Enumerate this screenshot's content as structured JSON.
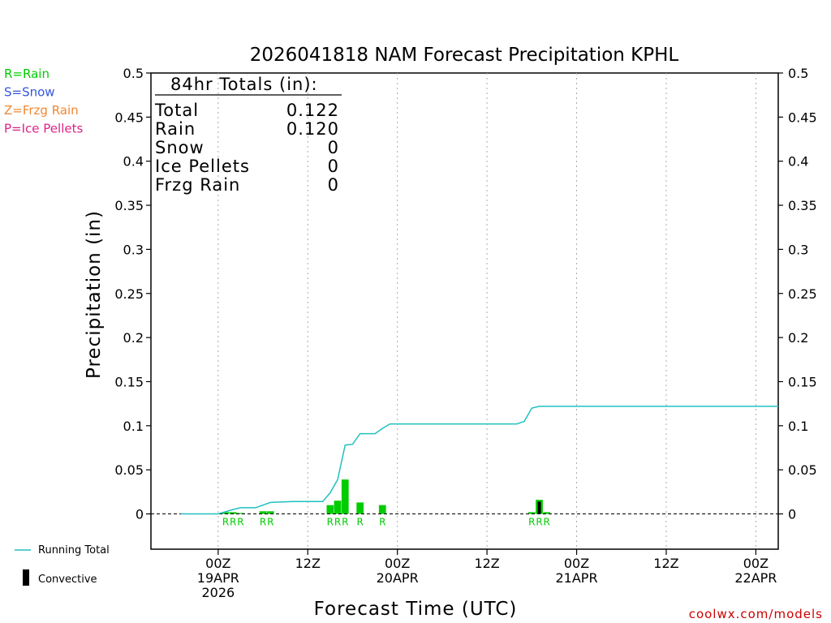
{
  "chart_data": {
    "type": "bar",
    "title": "2026041818 NAM Forecast Precipitation KPHL",
    "ylabel": "Precipitation (in)",
    "xlabel": "Forecast Time (UTC)",
    "ylim": [
      -0.04,
      0.5
    ],
    "y_ticks": [
      0,
      0.05,
      0.1,
      0.15,
      0.2,
      0.25,
      0.3,
      0.35,
      0.4,
      0.45,
      0.5
    ],
    "y_tick_labels": [
      "0",
      "0.05",
      "0.1",
      "0.15",
      "0.2",
      "0.25",
      "0.3",
      "0.35",
      "0.4",
      "0.45",
      "0.5"
    ],
    "xlim_hours": [
      -9,
      75
    ],
    "x_ticks": [
      {
        "hour": 0,
        "lines": [
          "00Z",
          "19APR",
          "2026"
        ]
      },
      {
        "hour": 12,
        "lines": [
          "12Z"
        ]
      },
      {
        "hour": 24,
        "lines": [
          "00Z",
          "20APR"
        ]
      },
      {
        "hour": 36,
        "lines": [
          "12Z"
        ]
      },
      {
        "hour": 48,
        "lines": [
          "00Z",
          "21APR"
        ]
      },
      {
        "hour": 60,
        "lines": [
          "12Z"
        ]
      },
      {
        "hour": 72,
        "lines": [
          "00Z",
          "22APR"
        ]
      }
    ],
    "grid_hours": [
      0,
      12,
      24,
      36,
      48,
      60,
      72
    ],
    "grid": "vertical dotted",
    "series": [
      {
        "name": "Running Total",
        "type": "line",
        "color": "#20c0c0",
        "x": [
          -5,
          0,
          2,
          3,
          5,
          7,
          10,
          12,
          14,
          15,
          16,
          17,
          18,
          19,
          21,
          22,
          23,
          30,
          40,
          41,
          42,
          43,
          50,
          60,
          70,
          75
        ],
        "y": [
          0,
          0,
          0.005,
          0.007,
          0.007,
          0.013,
          0.014,
          0.014,
          0.014,
          0.024,
          0.039,
          0.078,
          0.079,
          0.091,
          0.091,
          0.097,
          0.102,
          0.102,
          0.102,
          0.105,
          0.12,
          0.122,
          0.122,
          0.122,
          0.122,
          0.122
        ]
      },
      {
        "name": "Rain",
        "type": "bar",
        "color": "#00cc00",
        "x": [
          1,
          2,
          3,
          6,
          7,
          15,
          16,
          17,
          19,
          22,
          42,
          43,
          44
        ],
        "y": [
          0.002,
          0.002,
          0.001,
          0.003,
          0.003,
          0.01,
          0.015,
          0.039,
          0.013,
          0.01,
          0.002,
          0.016,
          0.002
        ]
      },
      {
        "name": "Convective",
        "type": "bar",
        "color": "#000000",
        "x": [
          43
        ],
        "y": [
          0.014
        ]
      }
    ],
    "precip_type_letters": [
      {
        "hour": 1,
        "label": "R"
      },
      {
        "hour": 2,
        "label": "R"
      },
      {
        "hour": 3,
        "label": "R"
      },
      {
        "hour": 6,
        "label": "R"
      },
      {
        "hour": 7,
        "label": "R"
      },
      {
        "hour": 15,
        "label": "R"
      },
      {
        "hour": 16,
        "label": "R"
      },
      {
        "hour": 17,
        "label": "R"
      },
      {
        "hour": 19,
        "label": "R"
      },
      {
        "hour": 22,
        "label": "R"
      },
      {
        "hour": 42,
        "label": "R"
      },
      {
        "hour": 43,
        "label": "R"
      },
      {
        "hour": 44,
        "label": "R"
      }
    ],
    "totals_box": {
      "heading": "84hr Totals (in):",
      "rows": [
        {
          "label": "Total",
          "value": "0.122"
        },
        {
          "label": "Rain",
          "value": "0.120"
        },
        {
          "label": "Snow",
          "value": "0"
        },
        {
          "label": "Ice Pellets",
          "value": "0"
        },
        {
          "label": "Frzg Rain",
          "value": "0"
        }
      ]
    },
    "type_legend": [
      {
        "text": "R=Rain",
        "color": "#00cc00"
      },
      {
        "text": "S=Snow",
        "color": "#3355dd"
      },
      {
        "text": "Z=Frzg Rain",
        "color": "#ee8833"
      },
      {
        "text": "P=Ice Pellets",
        "color": "#dd2288"
      }
    ],
    "line_legend": [
      {
        "text": "Running Total",
        "color": "#20c0c0",
        "symbol": "line"
      },
      {
        "text": "Convective",
        "color": "#000000",
        "symbol": "bar"
      }
    ]
  },
  "credit": "coolwx.com/models"
}
